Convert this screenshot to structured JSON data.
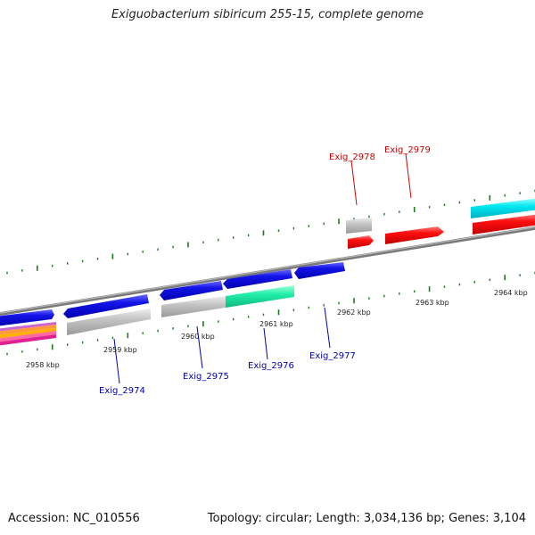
{
  "title": "Exiguobacterium sibiricum 255-15, complete genome",
  "footer": {
    "accession": "Accession: NC_010556",
    "summary": "Topology: circular; Length: 3,034,136 bp; Genes: 3,104"
  },
  "colors": {
    "backbone": "#8a8a8a",
    "tick": "#1a7a1a",
    "cds_forward": "#1010e0",
    "cds_reverse": "#ff0000",
    "gene_gray": "#c8c8c8",
    "label_forward": "#0000aa",
    "label_reverse": "#cc0000",
    "cyan": "#00e8f0",
    "green": "#20e8a0"
  },
  "kbp_labels": [
    "2958 kbp",
    "2959 kbp",
    "2960 kbp",
    "2961 kbp",
    "2962 kbp",
    "2963 kbp",
    "2964 kbp"
  ],
  "gene_labels_top": [
    {
      "name": "Exig_2978"
    },
    {
      "name": "Exig_2979"
    }
  ],
  "gene_labels_bottom": [
    {
      "name": "Exig_2974"
    },
    {
      "name": "Exig_2975"
    },
    {
      "name": "Exig_2976"
    },
    {
      "name": "Exig_2977"
    }
  ]
}
